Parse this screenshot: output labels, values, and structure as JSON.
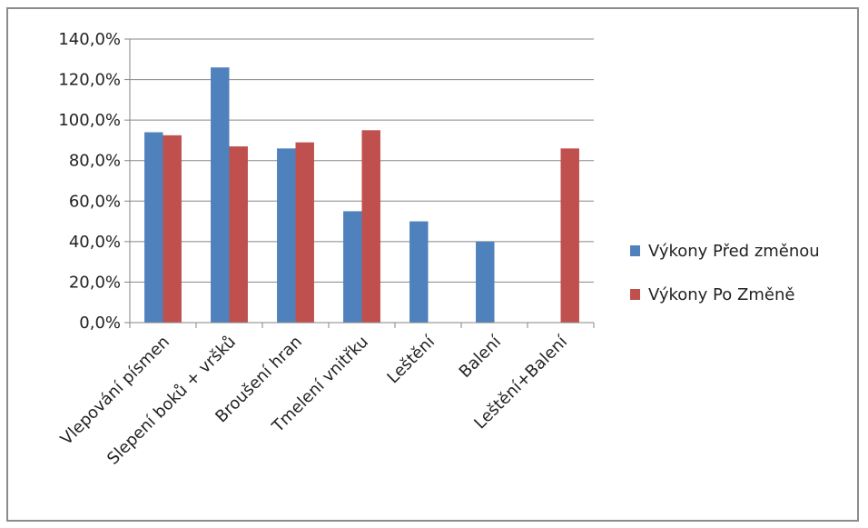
{
  "chart_data": {
    "type": "bar",
    "title": "",
    "xlabel": "",
    "ylabel": "",
    "ylim": [
      0,
      140
    ],
    "y_tick_step": 20,
    "y_tick_format": "percent-1-decimal-comma",
    "y_tick_labels": [
      "0,0%",
      "20,0%",
      "40,0%",
      "60,0%",
      "80,0%",
      "100,0%",
      "120,0%",
      "140,0%"
    ],
    "grid": true,
    "legend_position": "right",
    "categories": [
      "Vlepování písmen",
      "Slepení boků + vršků",
      "Broušení hran",
      "Tmelení vnitřku",
      "Leštění",
      "Balení",
      "Leštění+Balení"
    ],
    "series": [
      {
        "name": "Výkony Před změnou",
        "color": "#4f81bd",
        "values": [
          94,
          126,
          86,
          55,
          50,
          40,
          null
        ]
      },
      {
        "name": "Výkony Po Změně",
        "color": "#c0504d",
        "values": [
          92.5,
          87,
          89,
          95,
          null,
          null,
          86
        ]
      }
    ]
  }
}
